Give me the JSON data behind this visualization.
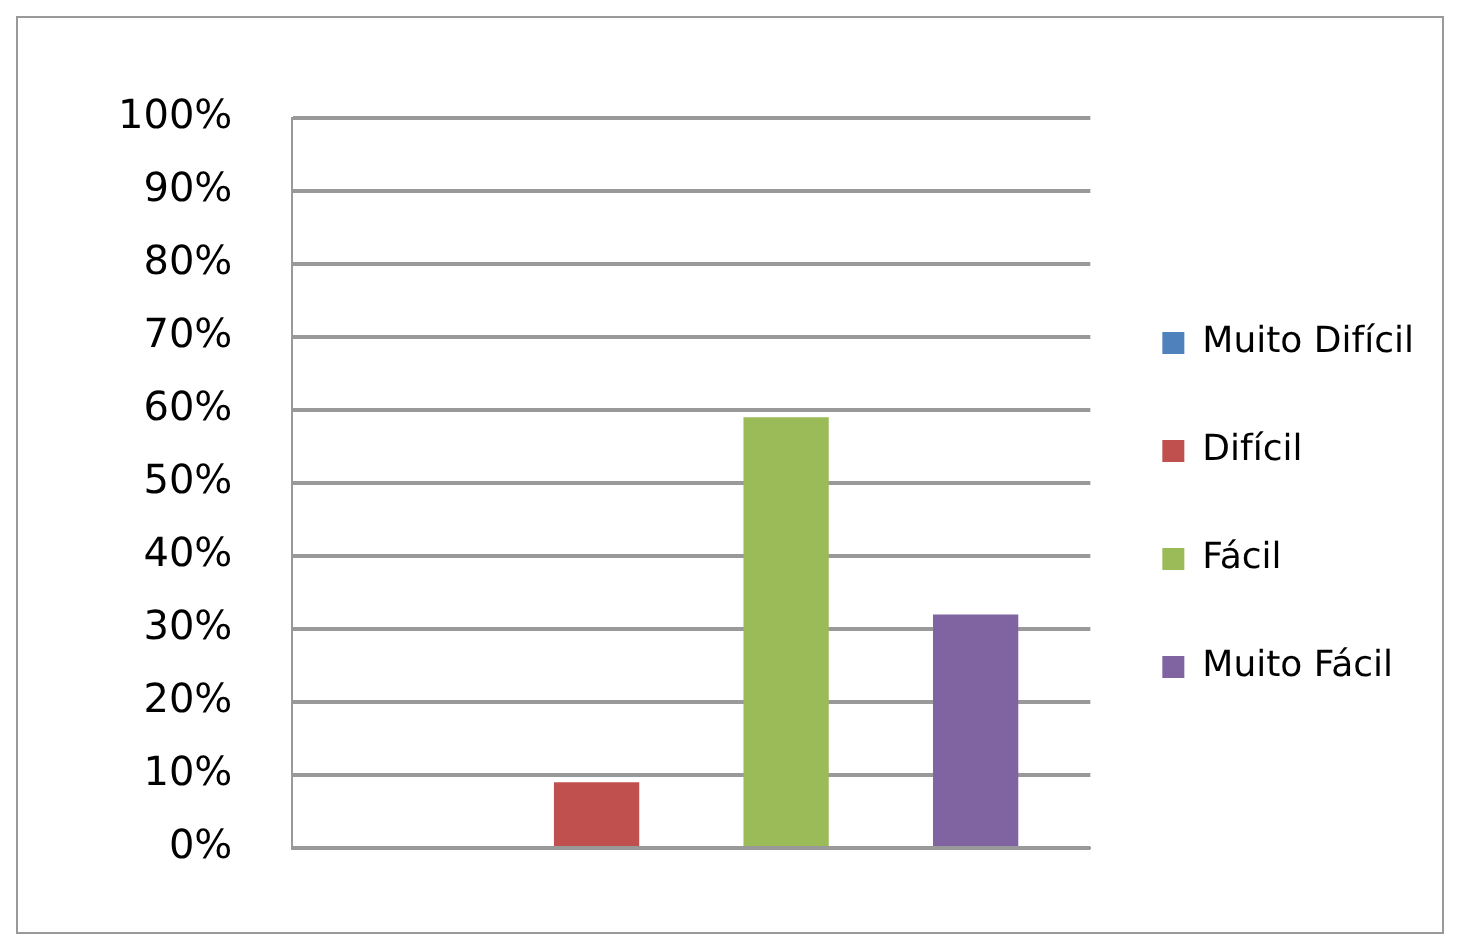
{
  "chart_data": {
    "type": "bar",
    "categories": [
      null
    ],
    "series": [
      {
        "name": "Muito Difícil",
        "color": "#4f81bd",
        "values": [
          0
        ]
      },
      {
        "name": "Difícil",
        "color": "#c0504d",
        "values": [
          9
        ]
      },
      {
        "name": "Fácil",
        "color": "#9bbb59",
        "values": [
          59
        ]
      },
      {
        "name": "Muito Fácil",
        "color": "#8064a2",
        "values": [
          32
        ]
      }
    ],
    "ylim": [
      0,
      100
    ],
    "yticks": [
      {
        "value": 0,
        "label": "0%"
      },
      {
        "value": 10,
        "label": "10%"
      },
      {
        "value": 20,
        "label": "20%"
      },
      {
        "value": 30,
        "label": "30%"
      },
      {
        "value": 40,
        "label": "40%"
      },
      {
        "value": 50,
        "label": "50%"
      },
      {
        "value": 60,
        "label": "60%"
      },
      {
        "value": 70,
        "label": "70%"
      },
      {
        "value": 80,
        "label": "80%"
      },
      {
        "value": 90,
        "label": "90%"
      },
      {
        "value": 100,
        "label": "100%"
      }
    ],
    "grid": "y",
    "legend": "right"
  }
}
